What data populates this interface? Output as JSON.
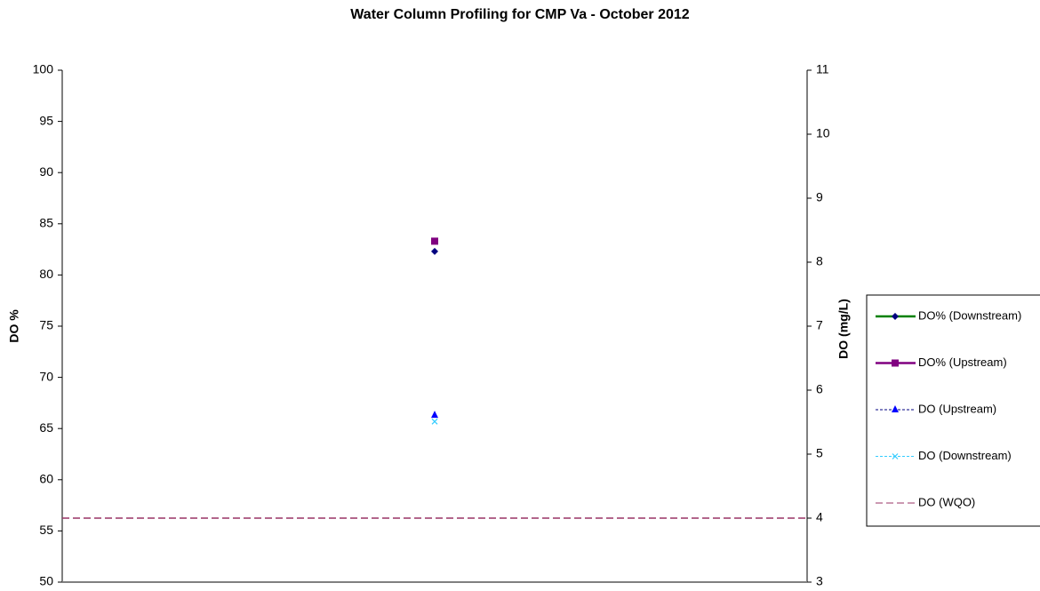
{
  "chart_data": {
    "type": "line",
    "title": "Water Column Profiling for CMP Va - October 2012",
    "y_label": "DO %",
    "y2_label": "DO (mg/L)",
    "categories": [
      null
    ],
    "ylim": [
      50,
      100
    ],
    "yticks": [
      50,
      55,
      60,
      65,
      70,
      75,
      80,
      85,
      90,
      95,
      100
    ],
    "y2lim": [
      3,
      11
    ],
    "y2ticks": [
      3,
      4,
      5,
      6,
      7,
      8,
      9,
      10,
      11
    ],
    "legend": "right",
    "series": [
      {
        "name": "DO% (Downstream)",
        "color": "#008000",
        "marker_color": "#000080",
        "marker": "diamond",
        "dash": false,
        "values": [
          82.3
        ]
      },
      {
        "name": "DO% (Upstream)",
        "color": "#800080",
        "marker_color": "#800080",
        "marker": "square",
        "dash": false,
        "values": [
          83.3
        ]
      },
      {
        "name": "DO (Upstream)",
        "color": "#000080",
        "marker_color": "#0000ff",
        "marker": "triangle",
        "dash": true,
        "axis": "y2",
        "values": [
          5.61
        ]
      },
      {
        "name": "DO (Downstream)",
        "color": "#33ccff",
        "marker_color": "#33ccff",
        "marker": "x",
        "dash": true,
        "axis": "y2",
        "values": [
          5.51
        ]
      },
      {
        "name": "DO (WQO)",
        "color": "#993366",
        "marker_color": "#993366",
        "marker": "none",
        "dash": true,
        "reference": true,
        "axis": "y2",
        "values": [
          4
        ]
      }
    ]
  }
}
